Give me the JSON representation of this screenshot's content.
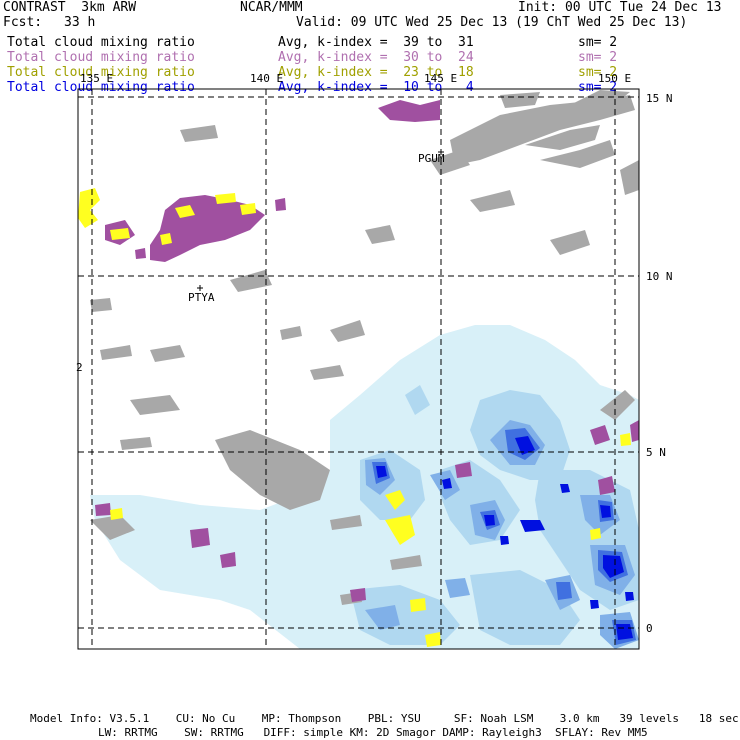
{
  "header": {
    "model": "CONTRAST  3km ARW",
    "center": "NCAR/MMM",
    "init": "Init: 00 UTC Tue 24 Dec 13",
    "fcst_label": "Fcst:",
    "fcst_value": "33 h",
    "valid": "Valid: 09 UTC Wed 25 Dec 13 (19 ChT Wed 25 Dec 13)"
  },
  "legend": [
    {
      "field": "Total cloud mixing ratio",
      "range": "Avg, k-index =  39 to  31",
      "sm": "sm= 2",
      "color": "#000000"
    },
    {
      "field": "Total cloud mixing ratio",
      "range": "Avg, k-index =  30 to  24",
      "sm": "sm= 2",
      "color": "#b070b0"
    },
    {
      "field": "Total cloud mixing ratio",
      "range": "Avg, k-index =  23 to  18",
      "sm": "sm= 2",
      "color": "#a0a000"
    },
    {
      "field": "Total cloud mixing ratio",
      "range": "Avg, k-index =  10 to   4",
      "sm": "sm= 2",
      "color": "#0000e0"
    }
  ],
  "map": {
    "lon_labels": [
      "135 E",
      "140 E",
      "145 E",
      "150 E"
    ],
    "lat_labels": [
      "15 N",
      "10 N",
      "5 N",
      "0"
    ],
    "places": [
      "PGUM",
      "PTYA"
    ],
    "side_marker": "2",
    "colors": {
      "gray": "#a8a8a8",
      "magenta": "#a050a0",
      "yellow": "#ffff20",
      "pale_blue": "#d8f0f8",
      "blue1": "#b0d8f0",
      "blue2": "#80b0e8",
      "blue3": "#4070e0",
      "blue4": "#0010e0"
    }
  },
  "footer": {
    "line1": "Model Info: V3.5.1    CU: No Cu    MP: Thompson    PBL: YSU     SF: Noah LSM    3.0 km   39 levels   18 sec",
    "line2": "LW: RRTMG    SW: RRTMG   DIFF: simple KM: 2D Smagor DAMP: Rayleigh3  SFLAY: Rev MM5"
  }
}
